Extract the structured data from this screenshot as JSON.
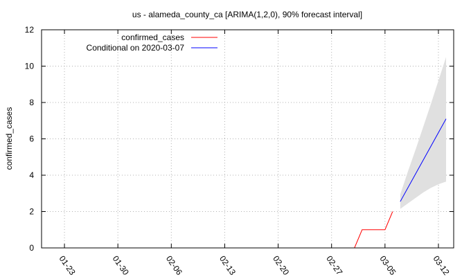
{
  "chart_data": {
    "type": "line",
    "title": "us - alameda_county_ca [ARIMA(1,2,0), 90% forecast interval]",
    "ylabel": "confirmed_cases",
    "xlabel": "",
    "ylim": [
      0,
      12
    ],
    "yticks": [
      0,
      2,
      4,
      6,
      8,
      10,
      12
    ],
    "xlim": [
      "2020-01-20",
      "2020-03-14"
    ],
    "xticks": [
      "01-23",
      "01-30",
      "02-06",
      "02-13",
      "02-20",
      "02-27",
      "03-05",
      "03-12"
    ],
    "xtick_dates": [
      "2020-01-23",
      "2020-01-30",
      "2020-02-06",
      "2020-02-13",
      "2020-02-20",
      "2020-02-27",
      "2020-03-05",
      "2020-03-12"
    ],
    "grid": true,
    "legend_position": "top-left",
    "series": [
      {
        "name": "confirmed_cases",
        "color": "#ff0000",
        "x": [
          "2020-03-01",
          "2020-03-02",
          "2020-03-03",
          "2020-03-04",
          "2020-03-05",
          "2020-03-06"
        ],
        "values": [
          0,
          1,
          1,
          1,
          1,
          2
        ]
      },
      {
        "name": "Conditional on 2020-03-07",
        "color": "#0000ff",
        "x": [
          "2020-03-07",
          "2020-03-13"
        ],
        "values": [
          2.55,
          7.1
        ]
      }
    ],
    "forecast_interval": {
      "color": "#e0e0e0",
      "x": [
        "2020-03-07",
        "2020-03-08",
        "2020-03-09",
        "2020-03-10",
        "2020-03-11",
        "2020-03-12",
        "2020-03-13"
      ],
      "lower": [
        2.15,
        2.45,
        2.75,
        3.05,
        3.3,
        3.5,
        3.65
      ],
      "upper": [
        2.95,
        4.2,
        5.4,
        6.65,
        7.9,
        9.2,
        10.5
      ]
    }
  }
}
